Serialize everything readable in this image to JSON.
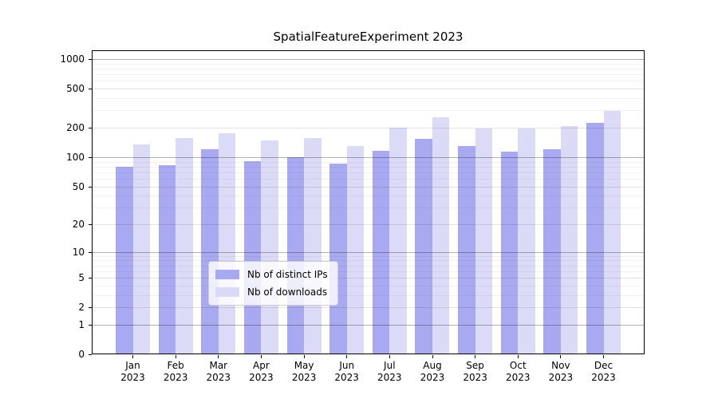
{
  "chart_data": {
    "type": "bar",
    "title": "SpatialFeatureExperiment 2023",
    "categories": [
      "Jan",
      "Feb",
      "Mar",
      "Apr",
      "May",
      "Jun",
      "Jul",
      "Aug",
      "Sep",
      "Oct",
      "Nov",
      "Dec"
    ],
    "year": "2023",
    "series": [
      {
        "key": "ips",
        "name": "Nb of distinct IPs",
        "color": "#a9a9f2",
        "values": [
          80,
          83,
          120,
          90,
          100,
          85,
          116,
          155,
          130,
          113,
          120,
          225
        ]
      },
      {
        "key": "downloads",
        "name": "Nb of downloads",
        "color": "#dbdbf8",
        "values": [
          135,
          157,
          175,
          148,
          157,
          129,
          200,
          255,
          197,
          196,
          206,
          296
        ]
      }
    ],
    "y_ticks": [
      0,
      1,
      2,
      5,
      10,
      20,
      50,
      100,
      200,
      500,
      1000
    ],
    "y_scale": "log10(1+v)",
    "ylim": [
      0,
      1230
    ],
    "grid": true,
    "legend_position": "lower center"
  }
}
